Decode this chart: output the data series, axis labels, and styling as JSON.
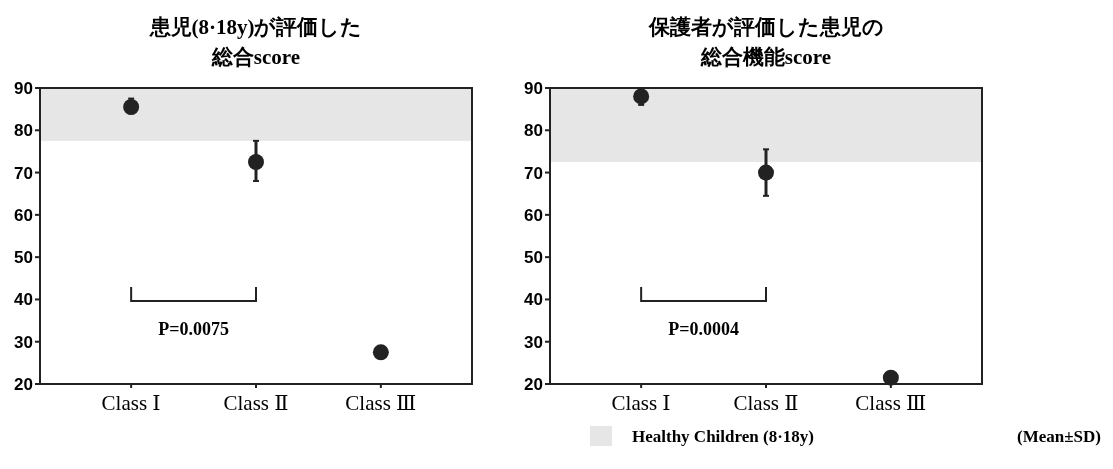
{
  "chart_data": [
    {
      "type": "scatter",
      "title": "患児(8·18y)が評価した総合score",
      "categories": [
        "Class Ⅰ",
        "Class Ⅱ",
        "Class Ⅲ"
      ],
      "series": [
        {
          "color": "#222222",
          "values": [
            85.5,
            72.5,
            27.5
          ],
          "errors": [
            [
              84,
              87.5
            ],
            [
              68,
              77.5
            ],
            null
          ]
        }
      ],
      "marker": "circle",
      "ylim": [
        20,
        90
      ],
      "yticks": [
        20,
        30,
        40,
        50,
        60,
        70,
        80,
        90
      ],
      "bands": [
        {
          "axis": "y",
          "from": 77.5,
          "to": 90,
          "color": "#e6e6e6"
        }
      ],
      "annotations": [
        "P=0.0075"
      ]
    },
    {
      "type": "scatter",
      "title": "保護者が評価した患児の総合機能score",
      "categories": [
        "Class Ⅰ",
        "Class Ⅱ",
        "Class Ⅲ"
      ],
      "series": [
        {
          "color": "#222222",
          "values": [
            88,
            70,
            21.5
          ],
          "errors": [
            [
              86,
              89.5
            ],
            [
              64.5,
              75.5
            ],
            null
          ]
        }
      ],
      "marker": "circle",
      "ylim": [
        20,
        90
      ],
      "yticks": [
        20,
        30,
        40,
        50,
        60,
        70,
        80,
        90
      ],
      "bands": [
        {
          "axis": "y",
          "from": 72.5,
          "to": 90,
          "color": "#e6e6e6",
          "label": "Healthy Children (8·18y)"
        }
      ],
      "annotations": [
        "P=0.0004",
        "(Mean±SD)"
      ]
    }
  ]
}
